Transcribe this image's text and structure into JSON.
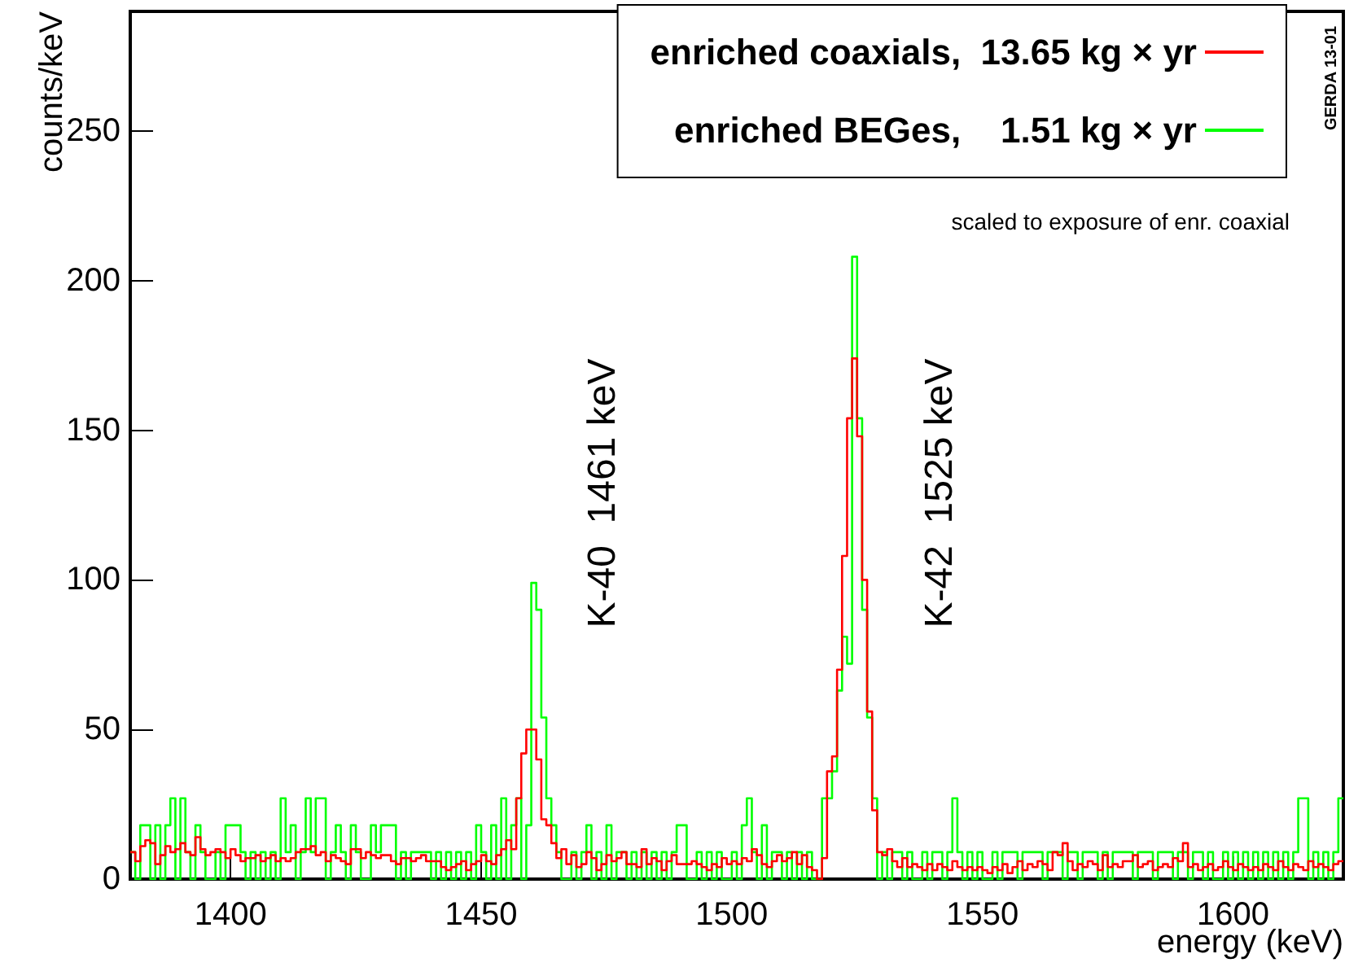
{
  "chart_data": {
    "type": "histogram",
    "xlabel": "energy (keV)",
    "ylabel": "counts/keV",
    "xlim": [
      1380,
      1622
    ],
    "ylim": [
      0,
      290
    ],
    "xticks": [
      1400,
      1450,
      1500,
      1550,
      1600
    ],
    "yticks": [
      0,
      50,
      100,
      150,
      200,
      250
    ],
    "grid": false,
    "legend": "top right",
    "annotations": [
      "K-40  1461 keV",
      "K-42  1525 keV",
      "scaled to exposure of enr. coaxial",
      "GERDA 13-01"
    ],
    "bins": [
      1380,
      1381,
      1382,
      1383,
      1384,
      1385,
      1386,
      1387,
      1388,
      1389,
      1390,
      1391,
      1392,
      1393,
      1394,
      1395,
      1396,
      1397,
      1398,
      1399,
      1400,
      1401,
      1402,
      1403,
      1404,
      1405,
      1406,
      1407,
      1408,
      1409,
      1410,
      1411,
      1412,
      1413,
      1414,
      1415,
      1416,
      1417,
      1418,
      1419,
      1420,
      1421,
      1422,
      1423,
      1424,
      1425,
      1426,
      1427,
      1428,
      1429,
      1430,
      1431,
      1432,
      1433,
      1434,
      1435,
      1436,
      1437,
      1438,
      1439,
      1440,
      1441,
      1442,
      1443,
      1444,
      1445,
      1446,
      1447,
      1448,
      1449,
      1450,
      1451,
      1452,
      1453,
      1454,
      1455,
      1456,
      1457,
      1458,
      1459,
      1460,
      1461,
      1462,
      1463,
      1464,
      1465,
      1466,
      1467,
      1468,
      1469,
      1470,
      1471,
      1472,
      1473,
      1474,
      1475,
      1476,
      1477,
      1478,
      1479,
      1480,
      1481,
      1482,
      1483,
      1484,
      1485,
      1486,
      1487,
      1488,
      1489,
      1490,
      1491,
      1492,
      1493,
      1494,
      1495,
      1496,
      1497,
      1498,
      1499,
      1500,
      1501,
      1502,
      1503,
      1504,
      1505,
      1506,
      1507,
      1508,
      1509,
      1510,
      1511,
      1512,
      1513,
      1514,
      1515,
      1516,
      1517,
      1518,
      1519,
      1520,
      1521,
      1522,
      1523,
      1524,
      1525,
      1526,
      1527,
      1528,
      1529,
      1530,
      1531,
      1532,
      1533,
      1534,
      1535,
      1536,
      1537,
      1538,
      1539,
      1540,
      1541,
      1542,
      1543,
      1544,
      1545,
      1546,
      1547,
      1548,
      1549,
      1550,
      1551,
      1552,
      1553,
      1554,
      1555,
      1556,
      1557,
      1558,
      1559,
      1560,
      1561,
      1562,
      1563,
      1564,
      1565,
      1566,
      1567,
      1568,
      1569,
      1570,
      1571,
      1572,
      1573,
      1574,
      1575,
      1576,
      1577,
      1578,
      1579,
      1580,
      1581,
      1582,
      1583,
      1584,
      1585,
      1586,
      1587,
      1588,
      1589,
      1590,
      1591,
      1592,
      1593,
      1594,
      1595,
      1596,
      1597,
      1598,
      1599,
      1600,
      1601,
      1602,
      1603,
      1604,
      1605,
      1606,
      1607,
      1608,
      1609,
      1610,
      1611,
      1612,
      1613,
      1614,
      1615,
      1616,
      1617,
      1618,
      1619,
      1620,
      1621,
      1622
    ],
    "series": [
      {
        "name": "enriched coaxials,  13.65 kg × yr",
        "color": "#ff0000",
        "values": [
          9,
          6,
          11,
          13,
          12,
          5,
          8,
          11,
          9,
          10,
          12,
          9,
          8,
          14,
          10,
          8,
          9,
          10,
          9,
          7,
          10,
          8,
          6,
          7,
          7,
          8,
          6,
          7,
          8,
          6,
          7,
          6,
          7,
          9,
          10,
          10,
          11,
          8,
          9,
          6,
          8,
          7,
          6,
          5,
          10,
          10,
          7,
          9,
          8,
          7,
          8,
          8,
          6,
          5,
          7,
          7,
          6,
          7,
          8,
          6,
          6,
          6,
          4,
          3,
          4,
          5,
          6,
          3,
          5,
          6,
          8,
          6,
          5,
          8,
          10,
          13,
          10,
          27,
          42,
          50,
          50,
          40,
          20,
          18,
          12,
          7,
          10,
          5,
          8,
          4,
          5,
          9,
          7,
          3,
          5,
          8,
          6,
          7,
          9,
          5,
          5,
          4,
          10,
          5,
          7,
          6,
          3,
          6,
          8,
          5,
          5,
          5,
          6,
          5,
          4,
          3,
          5,
          4,
          7,
          5,
          6,
          5,
          7,
          6,
          10,
          8,
          5,
          4,
          6,
          8,
          6,
          7,
          9,
          5,
          8,
          4,
          3,
          0,
          7,
          36,
          41,
          70,
          108,
          154,
          174,
          148,
          100,
          56,
          23,
          9,
          8,
          10,
          6,
          4,
          7,
          4,
          5,
          4,
          3,
          5,
          3,
          5,
          4,
          3,
          6,
          4,
          3,
          4,
          3,
          4,
          3,
          2,
          4,
          3,
          5,
          2,
          4,
          6,
          3,
          5,
          4,
          6,
          5,
          3,
          9,
          8,
          12,
          6,
          3,
          5,
          4,
          6,
          5,
          3,
          8,
          4,
          5,
          4,
          6,
          6,
          8,
          4,
          5,
          6,
          3,
          4,
          5,
          4,
          7,
          6,
          12,
          4,
          5,
          3,
          4,
          5,
          3,
          4,
          6,
          4,
          3,
          5,
          4,
          3,
          4,
          3,
          5,
          4,
          3,
          6,
          4,
          3,
          5,
          4,
          3,
          6,
          4,
          5,
          4,
          3,
          5,
          6
        ]
      },
      {
        "name": "enriched BEGes,    1.51 kg × yr",
        "color": "#00ff00",
        "values": [
          9,
          0,
          18,
          18,
          0,
          18,
          0,
          18,
          27,
          0,
          27,
          9,
          0,
          18,
          9,
          0,
          0,
          9,
          0,
          18,
          18,
          18,
          9,
          0,
          9,
          0,
          9,
          0,
          9,
          0,
          27,
          9,
          18,
          0,
          9,
          27,
          9,
          27,
          27,
          0,
          9,
          18,
          9,
          0,
          18,
          9,
          0,
          0,
          18,
          9,
          18,
          18,
          18,
          0,
          9,
          0,
          9,
          9,
          9,
          9,
          0,
          9,
          0,
          9,
          0,
          9,
          0,
          9,
          0,
          18,
          9,
          0,
          18,
          0,
          27,
          0,
          18,
          27,
          0,
          18,
          99,
          90,
          54,
          27,
          18,
          9,
          0,
          0,
          9,
          0,
          9,
          18,
          0,
          9,
          0,
          18,
          0,
          9,
          9,
          0,
          9,
          0,
          9,
          0,
          9,
          0,
          9,
          0,
          9,
          18,
          18,
          0,
          0,
          9,
          0,
          9,
          0,
          9,
          0,
          0,
          9,
          0,
          18,
          27,
          9,
          0,
          18,
          0,
          9,
          9,
          0,
          9,
          0,
          9,
          0,
          9,
          0,
          0,
          27,
          27,
          36,
          63,
          81,
          72,
          208,
          154,
          90,
          54,
          27,
          0,
          9,
          0,
          9,
          9,
          0,
          9,
          0,
          0,
          9,
          0,
          9,
          9,
          0,
          9,
          27,
          9,
          0,
          9,
          0,
          9,
          0,
          0,
          9,
          0,
          9,
          9,
          9,
          0,
          9,
          9,
          9,
          9,
          0,
          9,
          9,
          9,
          0,
          9,
          9,
          0,
          9,
          9,
          9,
          0,
          9,
          0,
          9,
          9,
          9,
          9,
          0,
          9,
          9,
          9,
          0,
          9,
          9,
          9,
          0,
          9,
          9,
          0,
          9,
          9,
          0,
          9,
          0,
          0,
          9,
          0,
          9,
          0,
          9,
          0,
          9,
          0,
          9,
          0,
          9,
          0,
          9,
          0,
          9,
          27,
          27,
          0,
          9,
          0,
          9,
          0,
          9,
          27
        ]
      }
    ]
  }
}
